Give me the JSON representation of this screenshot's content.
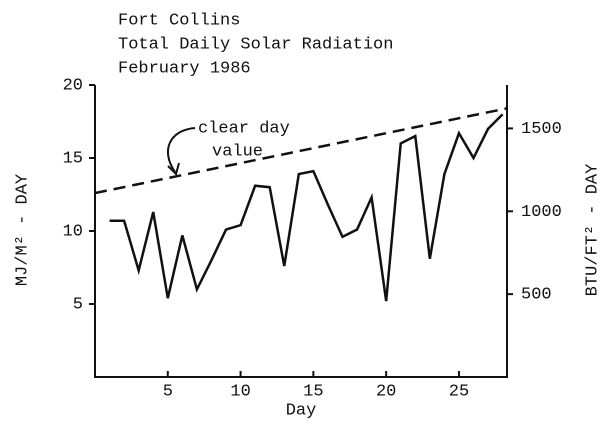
{
  "chart_data": {
    "type": "line",
    "title": [
      "Fort Collins",
      "Total Daily Solar Radiation",
      "February 1986"
    ],
    "xlabel": "Day",
    "ylabel": "MJ/M² - DAY",
    "y2label": "BTU/FT² - DAY",
    "annotation": [
      "clear day",
      "value"
    ],
    "xlim": [
      0,
      28.3
    ],
    "ylim": [
      0,
      20
    ],
    "y2lim": [
      0,
      1762
    ],
    "xticks": [
      5,
      10,
      15,
      20,
      25
    ],
    "yticks": [
      5,
      10,
      15,
      20
    ],
    "y2ticks": [
      500,
      1000,
      1500
    ],
    "series": [
      {
        "color": "#111111",
        "style": "solid",
        "x": [
          1,
          2,
          3,
          4,
          5,
          6,
          7,
          8,
          9,
          10,
          11,
          12,
          13,
          14,
          15,
          16,
          17,
          18,
          19,
          20,
          21,
          22,
          23,
          24,
          25,
          26,
          27,
          28
        ],
        "values": [
          10.7,
          10.7,
          7.3,
          11.3,
          5.4,
          9.7,
          6.0,
          8.0,
          10.1,
          10.4,
          13.1,
          13.0,
          7.6,
          13.9,
          14.1,
          11.8,
          9.6,
          10.1,
          12.3,
          5.2,
          16.0,
          16.5,
          8.1,
          13.9,
          16.7,
          15.0,
          17.0,
          18.0
        ]
      },
      {
        "color": "#111111",
        "style": "dashed",
        "x": [
          0,
          28.3
        ],
        "values": [
          12.6,
          18.4
        ]
      }
    ]
  }
}
